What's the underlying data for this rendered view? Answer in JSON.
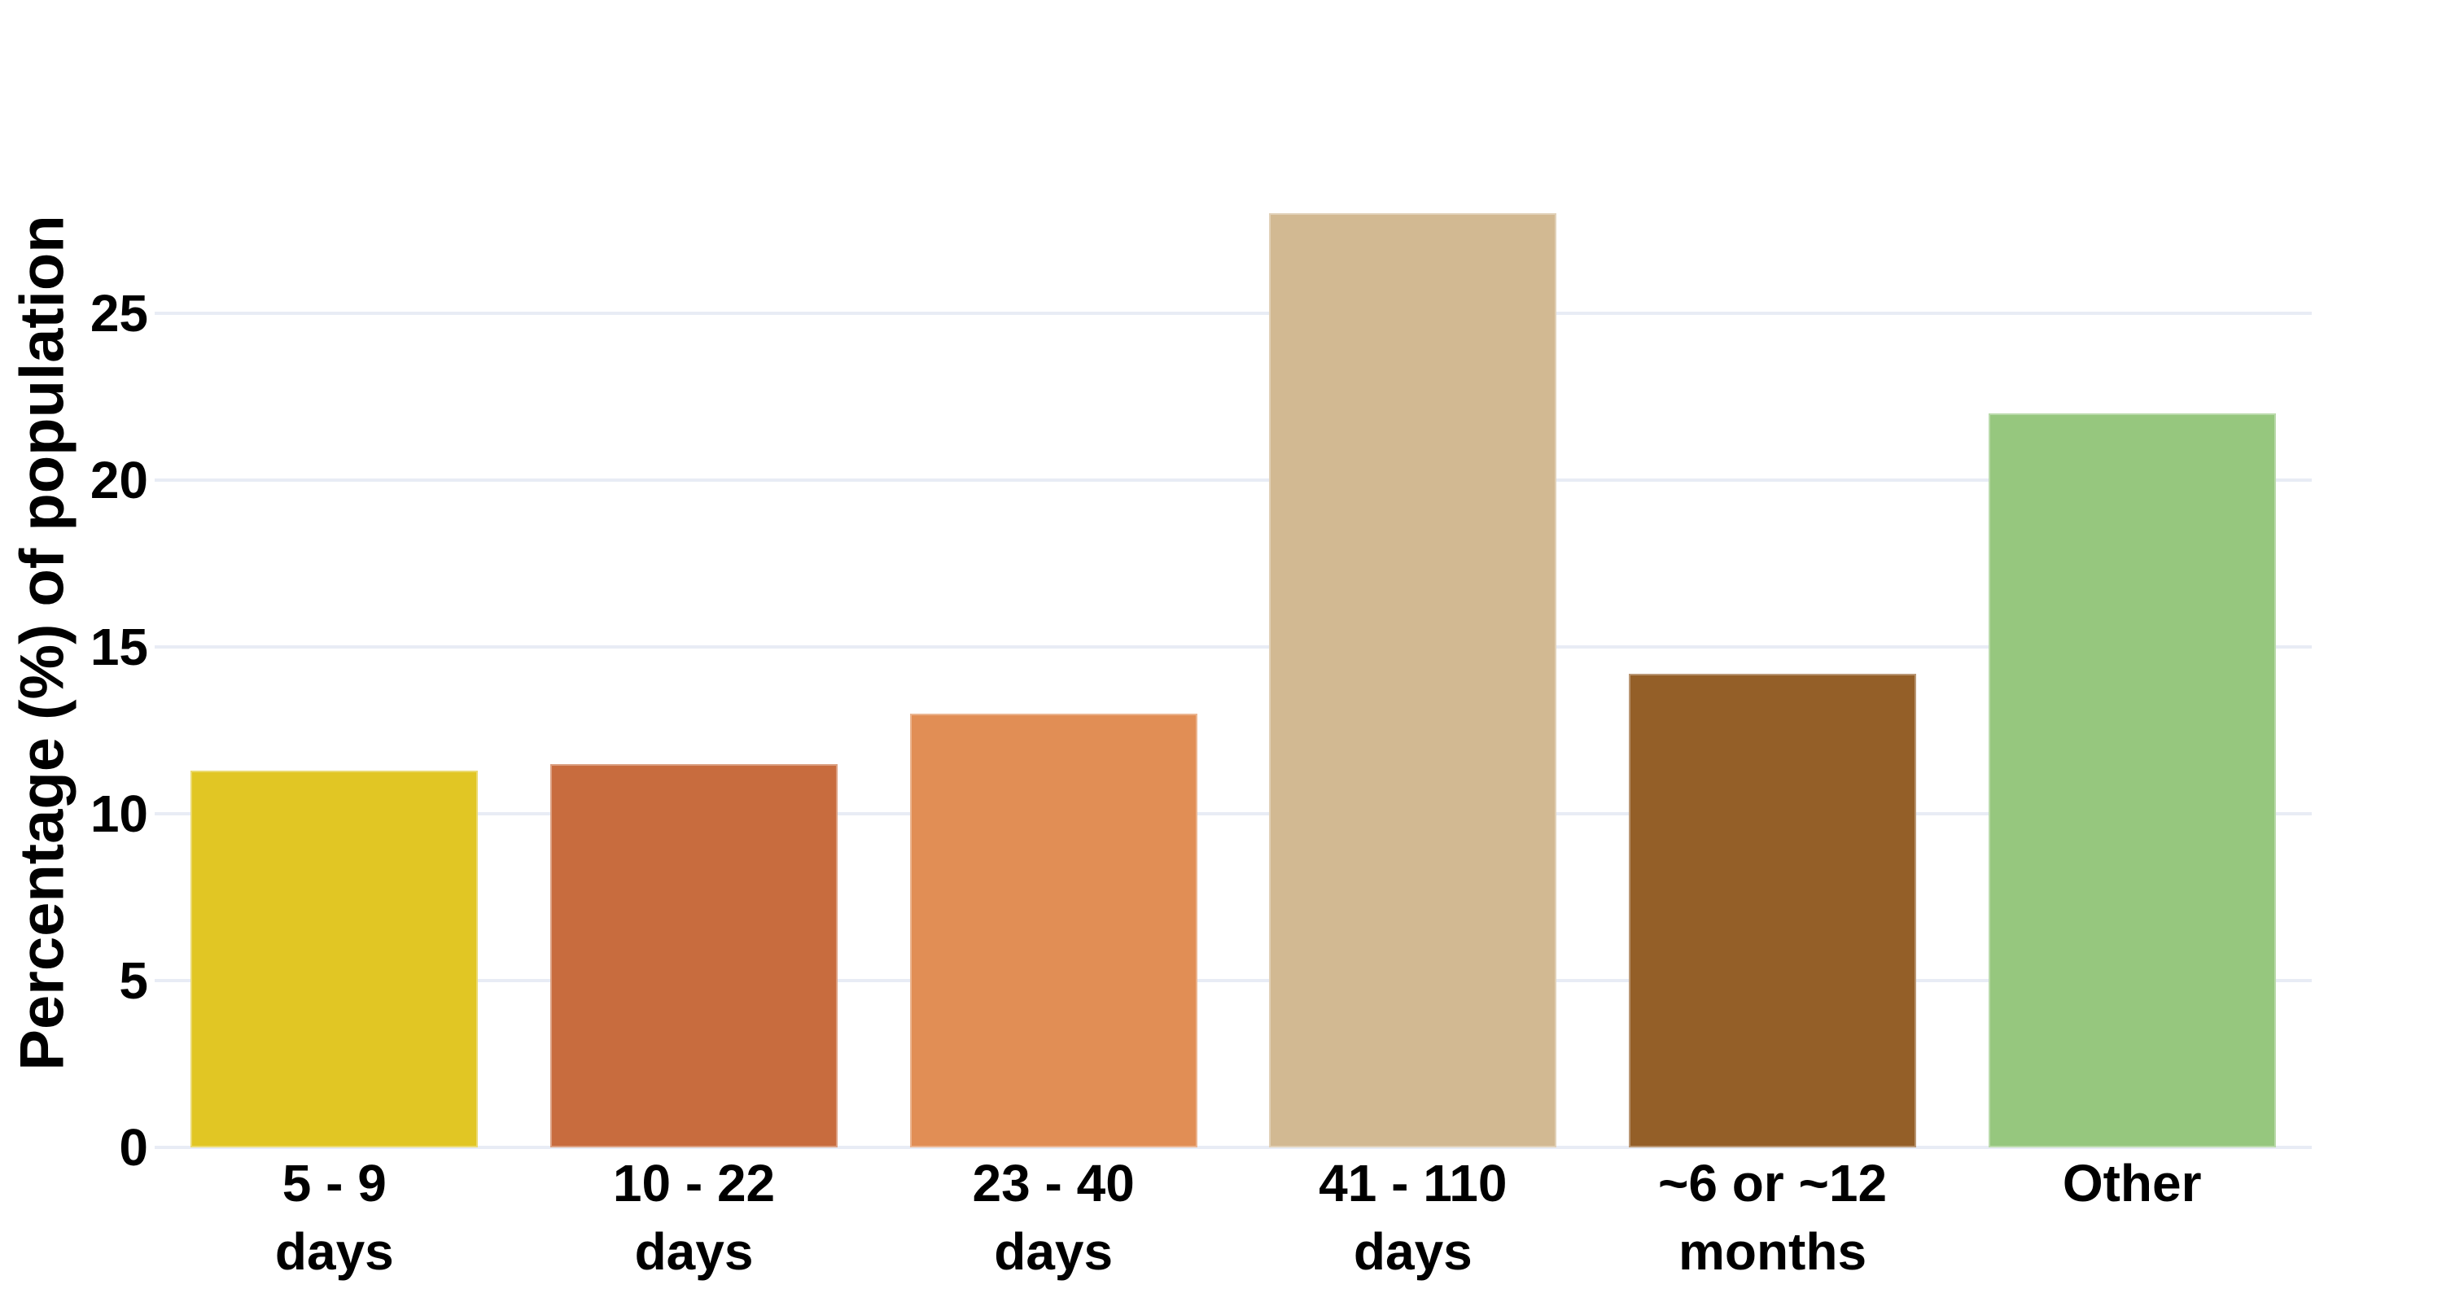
{
  "chart_data": {
    "type": "bar",
    "title": "",
    "xlabel": "",
    "ylabel": "Percentage (%) of population",
    "categories": [
      "5 - 9 days",
      "10 - 22 days",
      "23 - 40 days",
      "41 - 110 days",
      "~6 or ~12 months",
      "Other"
    ],
    "category_label_lines": [
      [
        "5 - 9",
        "days"
      ],
      [
        "10 - 22",
        "days"
      ],
      [
        "23 - 40",
        "days"
      ],
      [
        "41 - 110",
        "days"
      ],
      [
        "~6 or ~12",
        "months"
      ],
      [
        "Other"
      ]
    ],
    "values": [
      11.3,
      11.5,
      13.0,
      28.0,
      14.2,
      22.0
    ],
    "bar_colors": [
      "#e1c624",
      "#c86c3e",
      "#e18e55",
      "#d2b992",
      "#945f28",
      "#96c77e"
    ],
    "yticks": [
      0,
      5,
      10,
      15,
      20,
      25
    ],
    "ylim": [
      0,
      29
    ],
    "grid": "horizontal",
    "grid_color": "#e8ecf5",
    "text_color": "#000000",
    "background": "#ffffff",
    "legend": "none"
  }
}
